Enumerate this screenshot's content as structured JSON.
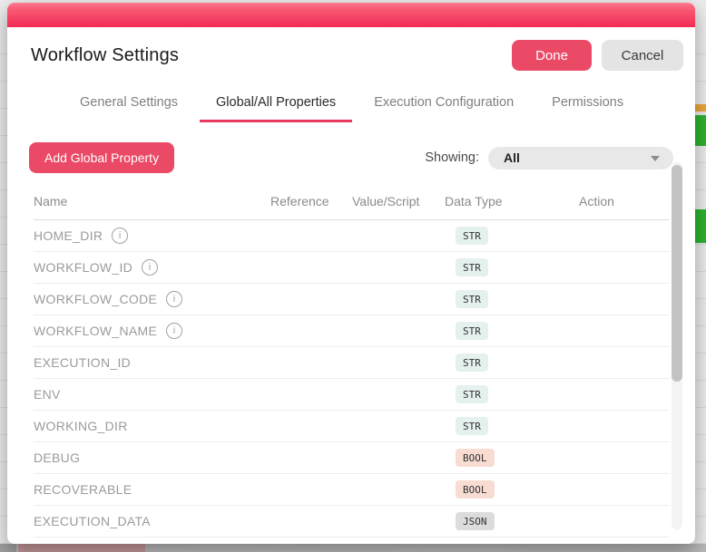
{
  "modal": {
    "title": "Workflow Settings",
    "buttons": {
      "done": "Done",
      "cancel": "Cancel"
    },
    "tabs": [
      {
        "label": "General Settings",
        "active": false
      },
      {
        "label": "Global/All Properties",
        "active": true
      },
      {
        "label": "Execution Configuration",
        "active": false
      },
      {
        "label": "Permissions",
        "active": false
      }
    ],
    "toolbar": {
      "add_button": "Add Global Property",
      "showing_label": "Showing:",
      "showing_value": "All"
    },
    "table": {
      "columns": [
        "Name",
        "Reference",
        "Value/Script",
        "Data Type",
        "Action"
      ],
      "rows": [
        {
          "name": "HOME_DIR",
          "info": true,
          "reference": "",
          "value_script": "",
          "data_type": "STR",
          "action": ""
        },
        {
          "name": "WORKFLOW_ID",
          "info": true,
          "reference": "",
          "value_script": "",
          "data_type": "STR",
          "action": ""
        },
        {
          "name": "WORKFLOW_CODE",
          "info": true,
          "reference": "",
          "value_script": "",
          "data_type": "STR",
          "action": ""
        },
        {
          "name": "WORKFLOW_NAME",
          "info": true,
          "reference": "",
          "value_script": "",
          "data_type": "STR",
          "action": ""
        },
        {
          "name": "EXECUTION_ID",
          "info": false,
          "reference": "",
          "value_script": "",
          "data_type": "STR",
          "action": ""
        },
        {
          "name": "ENV",
          "info": false,
          "reference": "",
          "value_script": "",
          "data_type": "STR",
          "action": ""
        },
        {
          "name": "WORKING_DIR",
          "info": false,
          "reference": "",
          "value_script": "",
          "data_type": "STR",
          "action": ""
        },
        {
          "name": "DEBUG",
          "info": false,
          "reference": "",
          "value_script": "",
          "data_type": "BOOL",
          "action": ""
        },
        {
          "name": "RECOVERABLE",
          "info": false,
          "reference": "",
          "value_script": "",
          "data_type": "BOOL",
          "action": ""
        },
        {
          "name": "EXECUTION_DATA",
          "info": false,
          "reference": "",
          "value_script": "",
          "data_type": "JSON",
          "action": ""
        }
      ]
    }
  },
  "icons": {
    "info": "info-icon",
    "dropdown_caret": "chevron-down-icon"
  },
  "colors": {
    "accent_pink": "#f22b55",
    "button_pink": "#eb4a67",
    "badge_str_bg": "#e4f1ee",
    "badge_bool_bg": "#f8dcd2",
    "badge_json_bg": "#dcdcdc",
    "backdrop_green": "#2db32d",
    "backdrop_orange": "#efa63a"
  }
}
